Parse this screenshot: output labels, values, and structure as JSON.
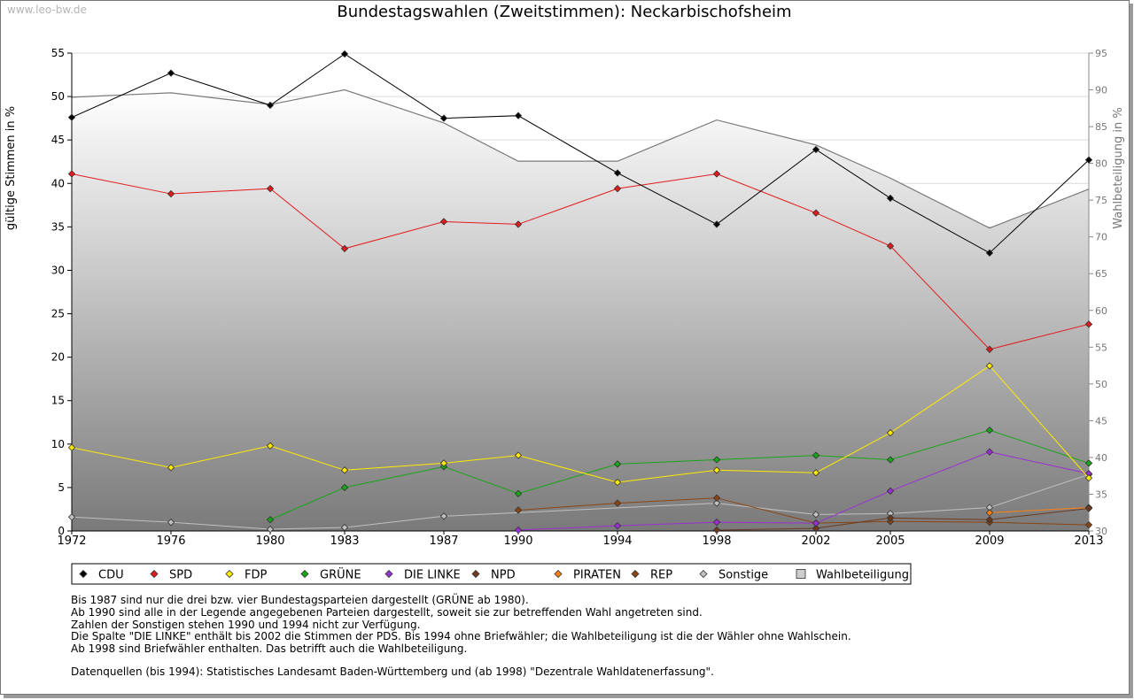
{
  "watermark": "www.leo-bw.de",
  "chart_data": {
    "type": "line",
    "title": "Bundestagswahlen (Zweitstimmen): Neckarbischofsheim",
    "ylabel": "gültige Stimmen in %",
    "y2label": "Wahlbeteiligung in %",
    "ylim": [
      0,
      55
    ],
    "y2lim": [
      30,
      95
    ],
    "yticks": [
      0,
      5,
      10,
      15,
      20,
      25,
      30,
      35,
      40,
      45,
      50,
      55
    ],
    "y2ticks": [
      30,
      35,
      40,
      45,
      50,
      55,
      60,
      65,
      70,
      75,
      80,
      85,
      90,
      95
    ],
    "x": [
      "1972",
      "1976",
      "1980",
      "1983",
      "1987",
      "1990",
      "1994",
      "1998",
      "2002",
      "2005",
      "2009",
      "2013"
    ],
    "xpos": [
      1972,
      1976,
      1980,
      1983,
      1987,
      1990,
      1994,
      1998,
      2002,
      2005,
      2009,
      2013
    ],
    "grid": true,
    "legend_position": "bottom",
    "series": [
      {
        "name": "CDU",
        "color": "#000000",
        "values": [
          47.6,
          52.7,
          49.0,
          54.9,
          47.5,
          47.8,
          41.2,
          35.3,
          43.9,
          38.3,
          32.0,
          42.7
        ]
      },
      {
        "name": "SPD",
        "color": "#e31a1c",
        "values": [
          41.1,
          38.8,
          39.4,
          32.5,
          35.6,
          35.3,
          39.4,
          41.1,
          36.6,
          32.8,
          20.9,
          23.8
        ]
      },
      {
        "name": "FDP",
        "color": "#ffeb00",
        "values": [
          9.6,
          7.3,
          9.8,
          7.0,
          7.8,
          8.7,
          5.6,
          7.0,
          6.7,
          11.3,
          19.0,
          6.1
        ]
      },
      {
        "name": "GRÜNE",
        "color": "#17a617",
        "values": [
          null,
          null,
          1.3,
          5.0,
          7.4,
          4.3,
          7.7,
          8.2,
          8.7,
          8.2,
          11.6,
          7.8
        ]
      },
      {
        "name": "DIE LINKE",
        "color": "#9a2fd3",
        "values": [
          null,
          null,
          null,
          null,
          null,
          0.1,
          0.6,
          1.0,
          0.9,
          4.6,
          9.1,
          6.6
        ]
      },
      {
        "name": "NPD",
        "color": "#6b3a1f",
        "values": [
          null,
          null,
          null,
          null,
          null,
          null,
          null,
          0.1,
          0.3,
          1.5,
          1.3,
          2.6
        ]
      },
      {
        "name": "PIRATEN",
        "color": "#ff7f0e",
        "values": [
          null,
          null,
          null,
          null,
          null,
          null,
          null,
          null,
          null,
          null,
          2.1,
          2.7
        ]
      },
      {
        "name": "REP",
        "color": "#8b4513",
        "values": [
          null,
          null,
          null,
          null,
          null,
          2.4,
          3.2,
          3.8,
          0.9,
          1.1,
          1.0,
          0.7
        ]
      },
      {
        "name": "Sonstige",
        "color": "#c0c0c0",
        "values": [
          1.6,
          1.0,
          0.2,
          0.4,
          1.7,
          null,
          null,
          3.2,
          1.9,
          2.0,
          2.7,
          6.5
        ]
      }
    ],
    "turnout": {
      "name": "Wahlbeteiligung",
      "axis": "right",
      "type": "area",
      "values": [
        89.0,
        89.6,
        88.0,
        90.0,
        85.5,
        80.3,
        80.3,
        85.9,
        82.5,
        78.0,
        71.2,
        76.5
      ]
    }
  },
  "notes": [
    "Bis 1987 sind nur die drei bzw. vier Bundestagsparteien dargestellt (GRÜNE ab 1980).",
    "Ab 1990 sind alle in der Legende angegebenen Parteien dargestellt, soweit sie zur betreffenden Wahl angetreten sind.",
    "Zahlen der Sonstigen stehen 1990 und 1994 nicht zur Verfügung.",
    "Die Spalte \"DIE LINKE\" enthält bis 2002 die Stimmen der PDS. Bis 1994 ohne Briefwähler; die Wahlbeteiligung ist die der Wähler ohne Wahlschein.",
    "Ab 1998 sind Briefwähler enthalten. Das betrifft auch die Wahlbeteiligung."
  ],
  "sources": "Datenquellen (bis 1994): Statistisches Landesamt Baden-Württemberg und (ab 1998) \"Dezentrale Wahldatenerfassung\"."
}
